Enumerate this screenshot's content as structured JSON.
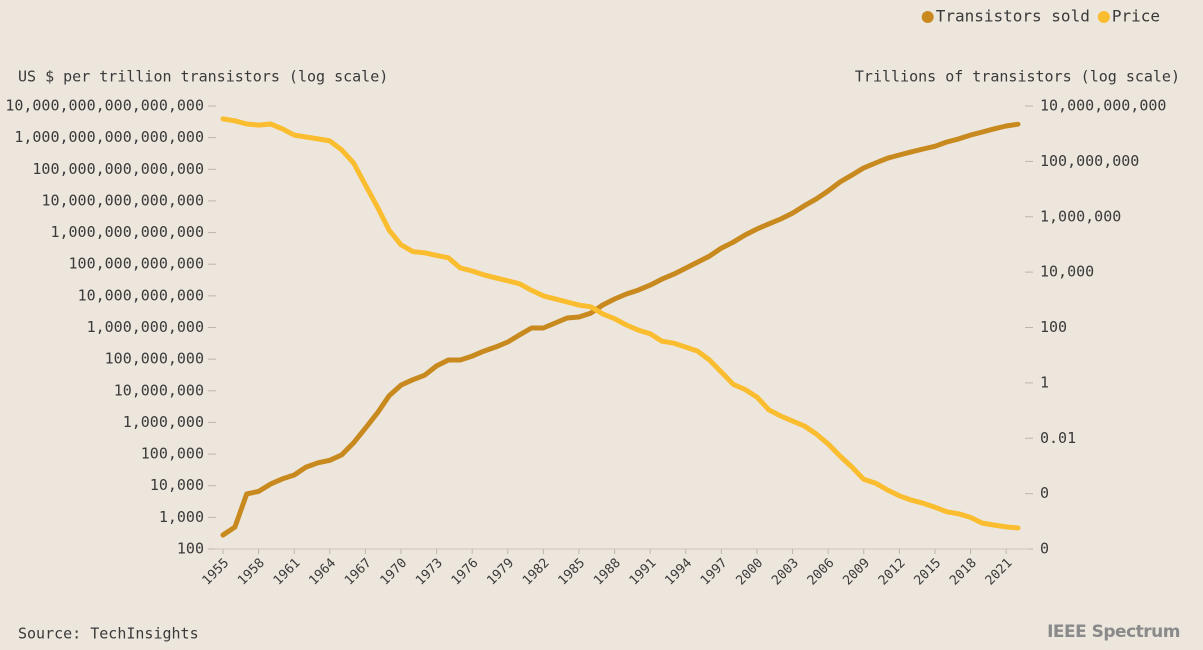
{
  "chart_data": {
    "type": "line",
    "y_label": "US $ per trillion transistors (log scale)",
    "y2_label": "Trillions of transistors (log scale)",
    "source": "Source: TechInsights",
    "brand": "IEEE Spectrum",
    "legend": "top-right",
    "yscale": "log",
    "y2scale": "log",
    "x": [
      1955,
      1956,
      1957,
      1958,
      1959,
      1960,
      1961,
      1962,
      1963,
      1964,
      1965,
      1966,
      1967,
      1968,
      1969,
      1970,
      1971,
      1972,
      1973,
      1974,
      1975,
      1976,
      1977,
      1978,
      1979,
      1980,
      1981,
      1982,
      1983,
      1984,
      1985,
      1986,
      1987,
      1988,
      1989,
      1990,
      1991,
      1992,
      1993,
      1994,
      1995,
      1996,
      1997,
      1998,
      1999,
      2000,
      2001,
      2002,
      2003,
      2004,
      2005,
      2006,
      2007,
      2008,
      2009,
      2010,
      2011,
      2012,
      2013,
      2014,
      2015,
      2016,
      2017,
      2018,
      2019,
      2020,
      2021,
      2022
    ],
    "xlim": [
      1955,
      2022
    ],
    "xticks": [
      1955,
      1958,
      1961,
      1964,
      1967,
      1970,
      1973,
      1976,
      1979,
      1982,
      1985,
      1988,
      1991,
      1994,
      1997,
      2000,
      2003,
      2006,
      2009,
      2012,
      2015,
      2018,
      2021
    ],
    "ylim": [
      100,
      1e+16
    ],
    "yticks": [
      {
        "value": 1e+16,
        "label": "10,000,000,000,000,000"
      },
      {
        "value": 1000000000000000.0,
        "label": "1,000,000,000,000,000"
      },
      {
        "value": 100000000000000.0,
        "label": "100,000,000,000,000"
      },
      {
        "value": 10000000000000.0,
        "label": "10,000,000,000,000"
      },
      {
        "value": 1000000000000.0,
        "label": "1,000,000,000,000"
      },
      {
        "value": 100000000000.0,
        "label": "100,000,000,000"
      },
      {
        "value": 10000000000.0,
        "label": "10,000,000,000"
      },
      {
        "value": 1000000000.0,
        "label": "1,000,000,000"
      },
      {
        "value": 100000000.0,
        "label": "100,000,000"
      },
      {
        "value": 10000000.0,
        "label": "10,000,000"
      },
      {
        "value": 1000000.0,
        "label": "1,000,000"
      },
      {
        "value": 100000.0,
        "label": "100,000"
      },
      {
        "value": 10000,
        "label": "10,000"
      },
      {
        "value": 1000,
        "label": "1,000"
      },
      100
    ],
    "y2lim": [
      1e-06,
      10000000000.0
    ],
    "y2ticks": [
      {
        "value": 10000000000.0,
        "label": "10,000,000,000"
      },
      {
        "value": 100000000.0,
        "label": "100,000,000"
      },
      {
        "value": 1000000.0,
        "label": "1,000,000"
      },
      {
        "value": 10000,
        "label": "10,000"
      },
      100,
      1,
      0.01,
      {
        "value": 0.0001,
        "label": "0"
      },
      {
        "value": 1e-06,
        "label": "0"
      }
    ],
    "series": [
      {
        "name": "Transistors sold",
        "color": "#c88a1f",
        "axis": "y2",
        "values": [
          3.2e-06,
          6.2e-06,
          9.8e-05,
          0.00012,
          0.00022,
          0.00034,
          0.00047,
          0.00091,
          0.0013,
          0.0016,
          0.0025,
          0.0068,
          0.023,
          0.081,
          0.34,
          0.83,
          1.3,
          1.9,
          4.1,
          6.7,
          6.7,
          9.3,
          14,
          20,
          30,
          54,
          96,
          96,
          145,
          220,
          240,
          330,
          650,
          1070,
          1620,
          2240,
          3390,
          5620,
          8510,
          14000.0,
          23000.0,
          38000.0,
          74000.0,
          120000.0,
          220000.0,
          360000.0,
          550000.0,
          830000.0,
          1350000.0,
          2500000.0,
          4400000.0,
          8500000.0,
          18000000.0,
          32000000.0,
          58000000.0,
          87000000.0,
          130000000.0,
          170000000.0,
          220000000.0,
          280000000.0,
          350000000.0,
          500000000.0,
          650000000.0,
          890000000.0,
          1150000000.0,
          1500000000.0,
          1900000000.0,
          2200000000.0
        ]
      },
      {
        "name": "Price",
        "color": "#fbbd30",
        "axis": "y",
        "values": [
          3900000000000000.0,
          3400000000000000.0,
          2700000000000000.0,
          2500000000000000.0,
          2700000000000000.0,
          1900000000000000.0,
          1200000000000000.0,
          1050000000000000.0,
          910000000000000.0,
          790000000000000.0,
          410000000000000.0,
          160000000000000.0,
          32000000000000.0,
          6500000000000.0,
          1200000000000.0,
          410000000000.0,
          250000000000.0,
          230000000000.0,
          190000000000.0,
          160000000000.0,
          76000000000.0,
          61000000000.0,
          46000000000.0,
          37000000000.0,
          30000000000.0,
          24000000000.0,
          15000000000.0,
          10000000000.0,
          8000000000.0,
          6400000000.0,
          5100000000.0,
          4500000000.0,
          2700000000.0,
          1900000000.0,
          1200000000.0,
          830000000.0,
          630000000.0,
          370000000.0,
          320000000.0,
          240000000.0,
          180000000.0,
          94000000.0,
          39000000.0,
          16000000.0,
          11000000.0,
          6300000.0,
          2500000.0,
          1600000.0,
          1100000.0,
          770000.0,
          430000.0,
          210000.0,
          87000.0,
          39000.0,
          16000.0,
          12000.0,
          7300.0,
          4800.0,
          3500.0,
          2800.0,
          2100.0,
          1500.0,
          1300.0,
          1000.0,
          660.0,
          570.0,
          500.0,
          460.0
        ]
      }
    ]
  }
}
